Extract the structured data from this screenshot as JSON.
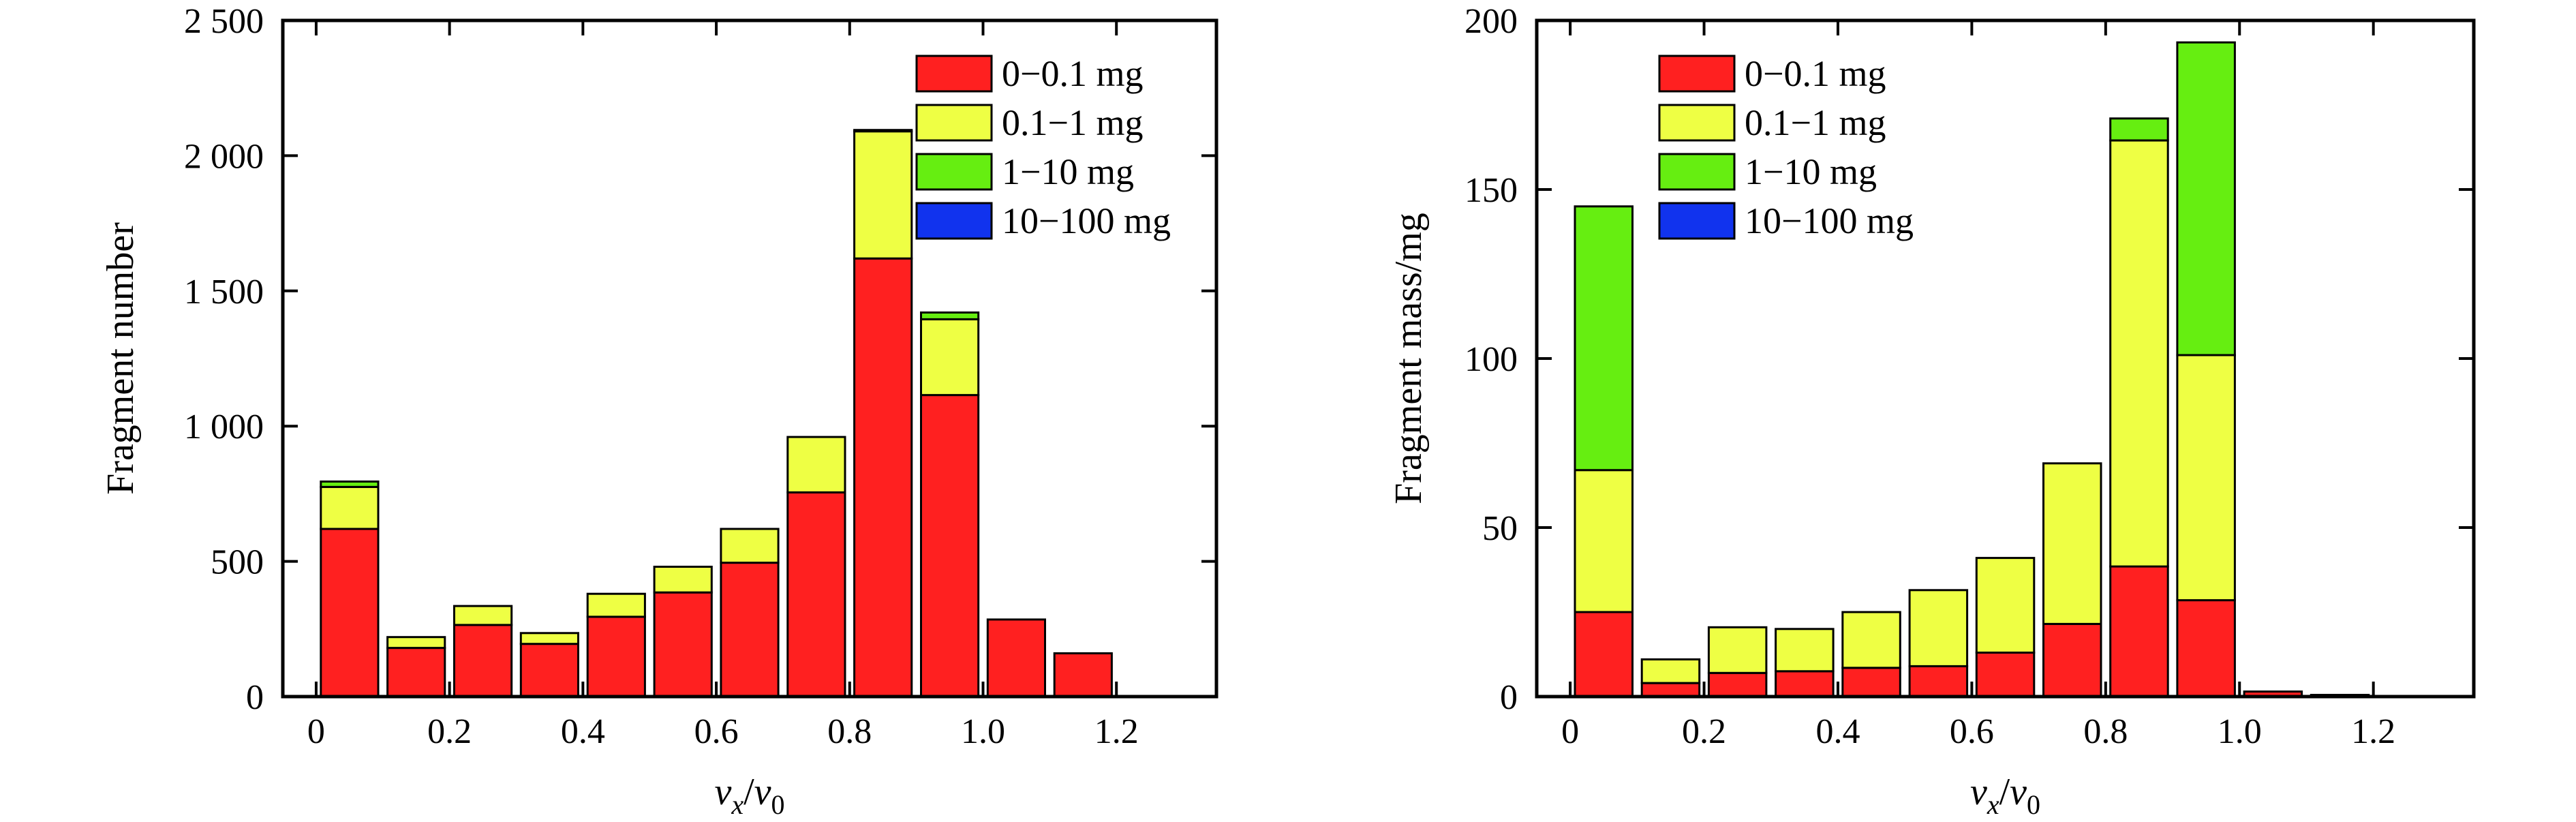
{
  "chart_data": [
    {
      "type": "bar",
      "stacked": true,
      "xlabel_parts": [
        "v",
        "x",
        "/",
        "v",
        "0"
      ],
      "ylabel": "Fragment number",
      "ylim": [
        0,
        2500
      ],
      "xlim": [
        -0.05,
        1.35
      ],
      "bin_width": 0.1,
      "bin_centers": [
        0.05,
        0.15,
        0.25,
        0.35,
        0.45,
        0.55,
        0.65,
        0.75,
        0.85,
        0.95,
        1.05,
        1.15
      ],
      "x_ticks": [
        0,
        0.2,
        0.4,
        0.6,
        0.8,
        1.0,
        1.2
      ],
      "x_tick_labels": [
        "0",
        "0.2",
        "0.4",
        "0.6",
        "0.8",
        "1.0",
        "1.2"
      ],
      "y_ticks": [
        0,
        500,
        1000,
        1500,
        2000,
        2500
      ],
      "y_tick_labels": [
        "0",
        "500",
        "1 000",
        "1 500",
        "2 000",
        "2 500"
      ],
      "legend_position": "top-right",
      "series": [
        {
          "name": "0−0.1 mg",
          "color": "#ff2020",
          "values": [
            620,
            180,
            265,
            195,
            295,
            385,
            495,
            755,
            1620,
            1115,
            285,
            160
          ]
        },
        {
          "name": "0.1−1 mg",
          "color": "#eeff44",
          "values": [
            155,
            40,
            70,
            40,
            85,
            95,
            125,
            205,
            470,
            280,
            0,
            0
          ]
        },
        {
          "name": "1−10 mg",
          "color": "#66ee11",
          "values": [
            20,
            0,
            0,
            0,
            0,
            0,
            0,
            0,
            5,
            25,
            0,
            0
          ]
        },
        {
          "name": "10−100 mg",
          "color": "#1133ee",
          "values": [
            0,
            0,
            0,
            0,
            0,
            0,
            0,
            0,
            0,
            0,
            0,
            0
          ]
        }
      ]
    },
    {
      "type": "bar",
      "stacked": true,
      "xlabel_parts": [
        "v",
        "x",
        "/",
        "v",
        "0"
      ],
      "ylabel": "Fragment mass/mg",
      "ylim": [
        0,
        200
      ],
      "xlim": [
        -0.05,
        1.35
      ],
      "bin_width": 0.1,
      "bin_centers": [
        0.05,
        0.15,
        0.25,
        0.35,
        0.45,
        0.55,
        0.65,
        0.75,
        0.85,
        0.95,
        1.05,
        1.15
      ],
      "x_ticks": [
        0,
        0.2,
        0.4,
        0.6,
        0.8,
        1.0,
        1.2
      ],
      "x_tick_labels": [
        "0",
        "0.2",
        "0.4",
        "0.6",
        "0.8",
        "1.0",
        "1.2"
      ],
      "y_ticks": [
        0,
        50,
        100,
        150,
        200
      ],
      "y_tick_labels": [
        "0",
        "50",
        "100",
        "150",
        "200"
      ],
      "legend_position": "top-left",
      "series": [
        {
          "name": "0−0.1 mg",
          "color": "#ff2020",
          "values": [
            25,
            4,
            7,
            7.5,
            8.5,
            9,
            13,
            21.5,
            38.5,
            28.5,
            1.5,
            0.5
          ]
        },
        {
          "name": "0.1−1 mg",
          "color": "#eeff44",
          "values": [
            42,
            7,
            13.5,
            12.5,
            16.5,
            22.5,
            28,
            47.5,
            126,
            72.5,
            0,
            0
          ]
        },
        {
          "name": "1−10 mg",
          "color": "#66ee11",
          "values": [
            78,
            0,
            0,
            0,
            0,
            0,
            0,
            0,
            6.5,
            92.5,
            0,
            0
          ]
        },
        {
          "name": "10−100 mg",
          "color": "#1133ee",
          "values": [
            0,
            0,
            0,
            0,
            0,
            0,
            0,
            0,
            0,
            0,
            0,
            0
          ]
        }
      ]
    }
  ]
}
